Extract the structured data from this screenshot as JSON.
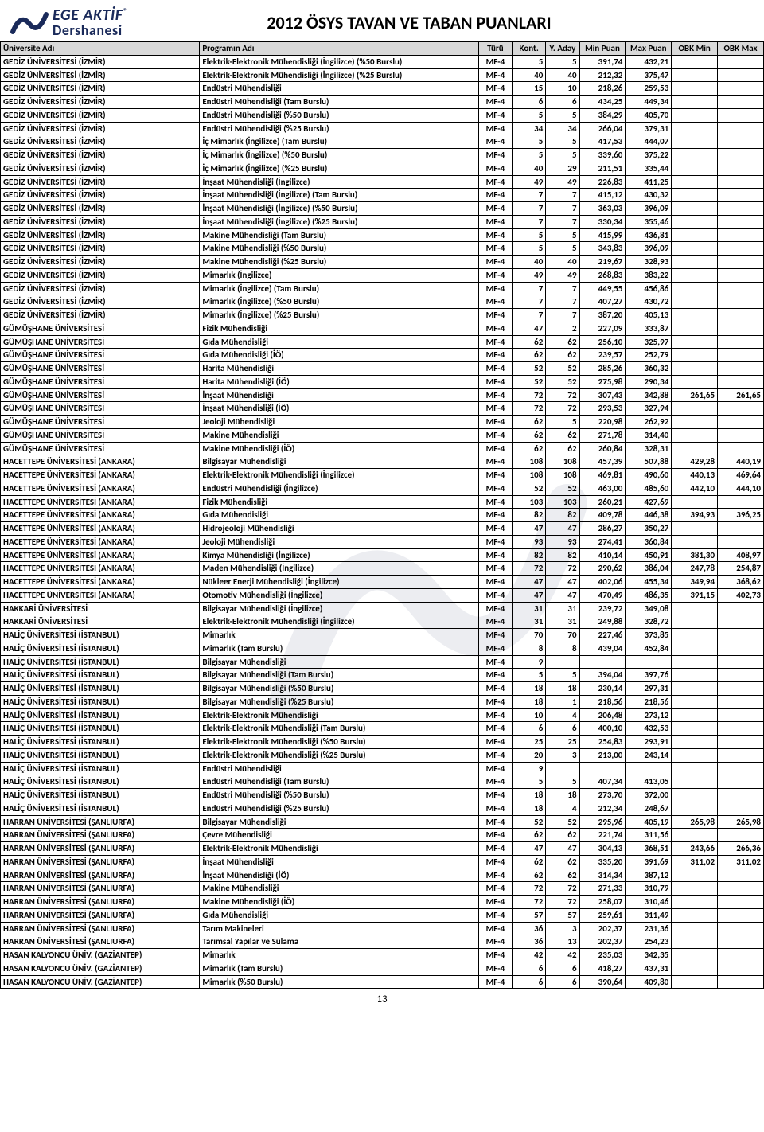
{
  "header": {
    "logo_line1": "EGE AKTİF",
    "logo_line2": "Dershanesi",
    "title": "2012 ÖSYS TAVAN VE TABAN PUANLARI"
  },
  "columns": [
    "Üniversite Adı",
    "Programın Adı",
    "Türü",
    "Kont.",
    "Y. Aday",
    "Min Puan",
    "Max Puan",
    "OBK Min",
    "OBK Max"
  ],
  "rows": [
    [
      "GEDİZ ÜNİVERSİTESİ (İZMİR)",
      "Elektrik-Elektronik Mühendisliği (İngilizce) (%50 Burslu)",
      "MF-4",
      "5",
      "5",
      "391,74",
      "432,21",
      "",
      ""
    ],
    [
      "GEDİZ ÜNİVERSİTESİ (İZMİR)",
      "Elektrik-Elektronik Mühendisliği (İngilizce) (%25 Burslu)",
      "MF-4",
      "40",
      "40",
      "212,32",
      "375,47",
      "",
      ""
    ],
    [
      "GEDİZ ÜNİVERSİTESİ (İZMİR)",
      "Endüstri Mühendisliği",
      "MF-4",
      "15",
      "10",
      "218,26",
      "259,53",
      "",
      ""
    ],
    [
      "GEDİZ ÜNİVERSİTESİ (İZMİR)",
      "Endüstri Mühendisliği (Tam Burslu)",
      "MF-4",
      "6",
      "6",
      "434,25",
      "449,34",
      "",
      ""
    ],
    [
      "GEDİZ ÜNİVERSİTESİ (İZMİR)",
      "Endüstri Mühendisliği (%50 Burslu)",
      "MF-4",
      "5",
      "5",
      "384,29",
      "405,70",
      "",
      ""
    ],
    [
      "GEDİZ ÜNİVERSİTESİ (İZMİR)",
      "Endüstri Mühendisliği (%25 Burslu)",
      "MF-4",
      "34",
      "34",
      "266,04",
      "379,31",
      "",
      ""
    ],
    [
      "GEDİZ ÜNİVERSİTESİ (İZMİR)",
      "İç Mimarlık (İngilizce) (Tam Burslu)",
      "MF-4",
      "5",
      "5",
      "417,53",
      "444,07",
      "",
      ""
    ],
    [
      "GEDİZ ÜNİVERSİTESİ (İZMİR)",
      "İç Mimarlık (İngilizce) (%50 Burslu)",
      "MF-4",
      "5",
      "5",
      "339,60",
      "375,22",
      "",
      ""
    ],
    [
      "GEDİZ ÜNİVERSİTESİ (İZMİR)",
      "İç Mimarlık (İngilizce) (%25 Burslu)",
      "MF-4",
      "40",
      "29",
      "211,51",
      "335,44",
      "",
      ""
    ],
    [
      "GEDİZ ÜNİVERSİTESİ (İZMİR)",
      "İnşaat Mühendisliği (İngilizce)",
      "MF-4",
      "49",
      "49",
      "226,83",
      "411,25",
      "",
      ""
    ],
    [
      "GEDİZ ÜNİVERSİTESİ (İZMİR)",
      "İnşaat Mühendisliği (İngilizce) (Tam Burslu)",
      "MF-4",
      "7",
      "7",
      "415,12",
      "430,32",
      "",
      ""
    ],
    [
      "GEDİZ ÜNİVERSİTESİ (İZMİR)",
      "İnşaat Mühendisliği (İngilizce) (%50 Burslu)",
      "MF-4",
      "7",
      "7",
      "363,03",
      "396,09",
      "",
      ""
    ],
    [
      "GEDİZ ÜNİVERSİTESİ (İZMİR)",
      "İnşaat Mühendisliği (İngilizce) (%25 Burslu)",
      "MF-4",
      "7",
      "7",
      "330,34",
      "355,46",
      "",
      ""
    ],
    [
      "GEDİZ ÜNİVERSİTESİ (İZMİR)",
      "Makine Mühendisliği (Tam Burslu)",
      "MF-4",
      "5",
      "5",
      "415,99",
      "436,81",
      "",
      ""
    ],
    [
      "GEDİZ ÜNİVERSİTESİ (İZMİR)",
      "Makine Mühendisliği (%50 Burslu)",
      "MF-4",
      "5",
      "5",
      "343,83",
      "396,09",
      "",
      ""
    ],
    [
      "GEDİZ ÜNİVERSİTESİ (İZMİR)",
      "Makine Mühendisliği (%25 Burslu)",
      "MF-4",
      "40",
      "40",
      "219,67",
      "328,93",
      "",
      ""
    ],
    [
      "GEDİZ ÜNİVERSİTESİ (İZMİR)",
      "Mimarlık (İngilizce)",
      "MF-4",
      "49",
      "49",
      "268,83",
      "383,22",
      "",
      ""
    ],
    [
      "GEDİZ ÜNİVERSİTESİ (İZMİR)",
      "Mimarlık (İngilizce) (Tam Burslu)",
      "MF-4",
      "7",
      "7",
      "449,55",
      "456,86",
      "",
      ""
    ],
    [
      "GEDİZ ÜNİVERSİTESİ (İZMİR)",
      "Mimarlık (İngilizce) (%50 Burslu)",
      "MF-4",
      "7",
      "7",
      "407,27",
      "430,72",
      "",
      ""
    ],
    [
      "GEDİZ ÜNİVERSİTESİ (İZMİR)",
      "Mimarlık (İngilizce) (%25 Burslu)",
      "MF-4",
      "7",
      "7",
      "387,20",
      "405,13",
      "",
      ""
    ],
    [
      "GÜMÜŞHANE ÜNİVERSİTESİ",
      "Fizik Mühendisliği",
      "MF-4",
      "47",
      "2",
      "227,09",
      "333,87",
      "",
      ""
    ],
    [
      "GÜMÜŞHANE ÜNİVERSİTESİ",
      "Gıda Mühendisliği",
      "MF-4",
      "62",
      "62",
      "256,10",
      "325,97",
      "",
      ""
    ],
    [
      "GÜMÜŞHANE ÜNİVERSİTESİ",
      "Gıda Mühendisliği (İÖ)",
      "MF-4",
      "62",
      "62",
      "239,57",
      "252,79",
      "",
      ""
    ],
    [
      "GÜMÜŞHANE ÜNİVERSİTESİ",
      "Harita Mühendisliği",
      "MF-4",
      "52",
      "52",
      "285,26",
      "360,32",
      "",
      ""
    ],
    [
      "GÜMÜŞHANE ÜNİVERSİTESİ",
      "Harita Mühendisliği (İÖ)",
      "MF-4",
      "52",
      "52",
      "275,98",
      "290,34",
      "",
      ""
    ],
    [
      "GÜMÜŞHANE ÜNİVERSİTESİ",
      "İnşaat Mühendisliği",
      "MF-4",
      "72",
      "72",
      "307,43",
      "342,88",
      "261,65",
      "261,65"
    ],
    [
      "GÜMÜŞHANE ÜNİVERSİTESİ",
      "İnşaat Mühendisliği (İÖ)",
      "MF-4",
      "72",
      "72",
      "293,53",
      "327,94",
      "",
      ""
    ],
    [
      "GÜMÜŞHANE ÜNİVERSİTESİ",
      "Jeoloji Mühendisliği",
      "MF-4",
      "62",
      "5",
      "220,98",
      "262,92",
      "",
      ""
    ],
    [
      "GÜMÜŞHANE ÜNİVERSİTESİ",
      "Makine Mühendisliği",
      "MF-4",
      "62",
      "62",
      "271,78",
      "314,40",
      "",
      ""
    ],
    [
      "GÜMÜŞHANE ÜNİVERSİTESİ",
      "Makine Mühendisliği (İÖ)",
      "MF-4",
      "62",
      "62",
      "260,84",
      "328,31",
      "",
      ""
    ],
    [
      "HACETTEPE ÜNİVERSİTESİ (ANKARA)",
      "Bilgisayar Mühendisliği",
      "MF-4",
      "108",
      "108",
      "457,39",
      "507,88",
      "429,28",
      "440,19"
    ],
    [
      "HACETTEPE ÜNİVERSİTESİ (ANKARA)",
      "Elektrik-Elektronik Mühendisliği (İngilizce)",
      "MF-4",
      "108",
      "108",
      "469,81",
      "490,60",
      "440,13",
      "469,64"
    ],
    [
      "HACETTEPE ÜNİVERSİTESİ (ANKARA)",
      "Endüstri Mühendisliği (İngilizce)",
      "MF-4",
      "52",
      "52",
      "463,00",
      "485,60",
      "442,10",
      "444,10"
    ],
    [
      "HACETTEPE ÜNİVERSİTESİ (ANKARA)",
      "Fizik Mühendisliği",
      "MF-4",
      "103",
      "103",
      "260,21",
      "427,69",
      "",
      ""
    ],
    [
      "HACETTEPE ÜNİVERSİTESİ (ANKARA)",
      "Gıda Mühendisliği",
      "MF-4",
      "82",
      "82",
      "409,78",
      "446,38",
      "394,93",
      "396,25"
    ],
    [
      "HACETTEPE ÜNİVERSİTESİ (ANKARA)",
      "Hidrojeoloji Mühendisliği",
      "MF-4",
      "47",
      "47",
      "286,27",
      "350,27",
      "",
      ""
    ],
    [
      "HACETTEPE ÜNİVERSİTESİ (ANKARA)",
      "Jeoloji Mühendisliği",
      "MF-4",
      "93",
      "93",
      "274,41",
      "360,84",
      "",
      ""
    ],
    [
      "HACETTEPE ÜNİVERSİTESİ (ANKARA)",
      "Kimya Mühendisliği (İngilizce)",
      "MF-4",
      "82",
      "82",
      "410,14",
      "450,91",
      "381,30",
      "408,97"
    ],
    [
      "HACETTEPE ÜNİVERSİTESİ (ANKARA)",
      "Maden Mühendisliği (İngilizce)",
      "MF-4",
      "72",
      "72",
      "290,62",
      "386,04",
      "247,78",
      "254,87"
    ],
    [
      "HACETTEPE ÜNİVERSİTESİ (ANKARA)",
      "Nükleer Enerji Mühendisliği (İngilizce)",
      "MF-4",
      "47",
      "47",
      "402,06",
      "455,34",
      "349,94",
      "368,62"
    ],
    [
      "HACETTEPE ÜNİVERSİTESİ (ANKARA)",
      "Otomotiv Mühendisliği (İngilizce)",
      "MF-4",
      "47",
      "47",
      "470,49",
      "486,35",
      "391,15",
      "402,73"
    ],
    [
      "HAKKARİ ÜNİVERSİTESİ",
      "Bilgisayar Mühendisliği (İngilizce)",
      "MF-4",
      "31",
      "31",
      "239,72",
      "349,08",
      "",
      ""
    ],
    [
      "HAKKARİ ÜNİVERSİTESİ",
      "Elektrik-Elektronik Mühendisliği (İngilizce)",
      "MF-4",
      "31",
      "31",
      "249,88",
      "328,72",
      "",
      ""
    ],
    [
      "HALİÇ ÜNİVERSİTESİ (İSTANBUL)",
      "Mimarlık",
      "MF-4",
      "70",
      "70",
      "227,46",
      "373,85",
      "",
      ""
    ],
    [
      "HALİÇ ÜNİVERSİTESİ (İSTANBUL)",
      "Mimarlık (Tam Burslu)",
      "MF-4",
      "8",
      "8",
      "439,04",
      "452,84",
      "",
      ""
    ],
    [
      "HALİÇ ÜNİVERSİTESİ (İSTANBUL)",
      "Bilgisayar Mühendisliği",
      "MF-4",
      "9",
      "",
      "",
      "",
      "",
      ""
    ],
    [
      "HALİÇ ÜNİVERSİTESİ (İSTANBUL)",
      "Bilgisayar Mühendisliği (Tam Burslu)",
      "MF-4",
      "5",
      "5",
      "394,04",
      "397,76",
      "",
      ""
    ],
    [
      "HALİÇ ÜNİVERSİTESİ (İSTANBUL)",
      "Bilgisayar Mühendisliği (%50 Burslu)",
      "MF-4",
      "18",
      "18",
      "230,14",
      "297,31",
      "",
      ""
    ],
    [
      "HALİÇ ÜNİVERSİTESİ (İSTANBUL)",
      "Bilgisayar Mühendisliği (%25 Burslu)",
      "MF-4",
      "18",
      "1",
      "218,56",
      "218,56",
      "",
      ""
    ],
    [
      "HALİÇ ÜNİVERSİTESİ (İSTANBUL)",
      "Elektrik-Elektronik Mühendisliği",
      "MF-4",
      "10",
      "4",
      "206,48",
      "273,12",
      "",
      ""
    ],
    [
      "HALİÇ ÜNİVERSİTESİ (İSTANBUL)",
      "Elektrik-Elektronik Mühendisliği (Tam Burslu)",
      "MF-4",
      "6",
      "6",
      "400,10",
      "432,53",
      "",
      ""
    ],
    [
      "HALİÇ ÜNİVERSİTESİ (İSTANBUL)",
      "Elektrik-Elektronik Mühendisliği (%50 Burslu)",
      "MF-4",
      "25",
      "25",
      "254,83",
      "293,91",
      "",
      ""
    ],
    [
      "HALİÇ ÜNİVERSİTESİ (İSTANBUL)",
      "Elektrik-Elektronik Mühendisliği (%25 Burslu)",
      "MF-4",
      "20",
      "3",
      "213,00",
      "243,14",
      "",
      ""
    ],
    [
      "HALİÇ ÜNİVERSİTESİ (İSTANBUL)",
      "Endüstri Mühendisliği",
      "MF-4",
      "9",
      "",
      "",
      "",
      "",
      ""
    ],
    [
      "HALİÇ ÜNİVERSİTESİ (İSTANBUL)",
      "Endüstri Mühendisliği (Tam Burslu)",
      "MF-4",
      "5",
      "5",
      "407,34",
      "413,05",
      "",
      ""
    ],
    [
      "HALİÇ ÜNİVERSİTESİ (İSTANBUL)",
      "Endüstri Mühendisliği (%50 Burslu)",
      "MF-4",
      "18",
      "18",
      "273,70",
      "372,00",
      "",
      ""
    ],
    [
      "HALİÇ ÜNİVERSİTESİ (İSTANBUL)",
      "Endüstri Mühendisliği (%25 Burslu)",
      "MF-4",
      "18",
      "4",
      "212,34",
      "248,67",
      "",
      ""
    ],
    [
      "HARRAN ÜNİVERSİTESİ (ŞANLIURFA)",
      "Bilgisayar Mühendisliği",
      "MF-4",
      "52",
      "52",
      "295,96",
      "405,19",
      "265,98",
      "265,98"
    ],
    [
      "HARRAN ÜNİVERSİTESİ (ŞANLIURFA)",
      "Çevre Mühendisliği",
      "MF-4",
      "62",
      "62",
      "221,74",
      "311,56",
      "",
      ""
    ],
    [
      "HARRAN ÜNİVERSİTESİ (ŞANLIURFA)",
      "Elektrik-Elektronik Mühendisliği",
      "MF-4",
      "47",
      "47",
      "304,13",
      "368,51",
      "243,66",
      "266,36"
    ],
    [
      "HARRAN ÜNİVERSİTESİ (ŞANLIURFA)",
      "İnşaat Mühendisliği",
      "MF-4",
      "62",
      "62",
      "335,20",
      "391,69",
      "311,02",
      "311,02"
    ],
    [
      "HARRAN ÜNİVERSİTESİ (ŞANLIURFA)",
      "İnşaat Mühendisliği (İÖ)",
      "MF-4",
      "62",
      "62",
      "314,34",
      "387,12",
      "",
      ""
    ],
    [
      "HARRAN ÜNİVERSİTESİ (ŞANLIURFA)",
      "Makine Mühendisliği",
      "MF-4",
      "72",
      "72",
      "271,33",
      "310,79",
      "",
      ""
    ],
    [
      "HARRAN ÜNİVERSİTESİ (ŞANLIURFA)",
      "Makine Mühendisliği (İÖ)",
      "MF-4",
      "72",
      "72",
      "258,07",
      "310,46",
      "",
      ""
    ],
    [
      "HARRAN ÜNİVERSİTESİ (ŞANLIURFA)",
      "Gıda Mühendisliği",
      "MF-4",
      "57",
      "57",
      "259,61",
      "311,49",
      "",
      ""
    ],
    [
      "HARRAN ÜNİVERSİTESİ (ŞANLIURFA)",
      "Tarım Makineleri",
      "MF-4",
      "36",
      "3",
      "202,37",
      "231,36",
      "",
      ""
    ],
    [
      "HARRAN ÜNİVERSİTESİ (ŞANLIURFA)",
      "Tarımsal Yapılar ve Sulama",
      "MF-4",
      "36",
      "13",
      "202,37",
      "254,23",
      "",
      ""
    ],
    [
      "HASAN KALYONCU ÜNİV. (GAZİANTEP)",
      "Mimarlık",
      "MF-4",
      "42",
      "42",
      "235,03",
      "342,35",
      "",
      ""
    ],
    [
      "HASAN KALYONCU ÜNİV. (GAZİANTEP)",
      "Mimarlık (Tam Burslu)",
      "MF-4",
      "6",
      "6",
      "418,27",
      "437,31",
      "",
      ""
    ],
    [
      "HASAN KALYONCU ÜNİV. (GAZİANTEP)",
      "Mimarlık (%50 Burslu)",
      "MF-4",
      "6",
      "6",
      "390,64",
      "409,80",
      "",
      ""
    ]
  ],
  "page_number": "13"
}
